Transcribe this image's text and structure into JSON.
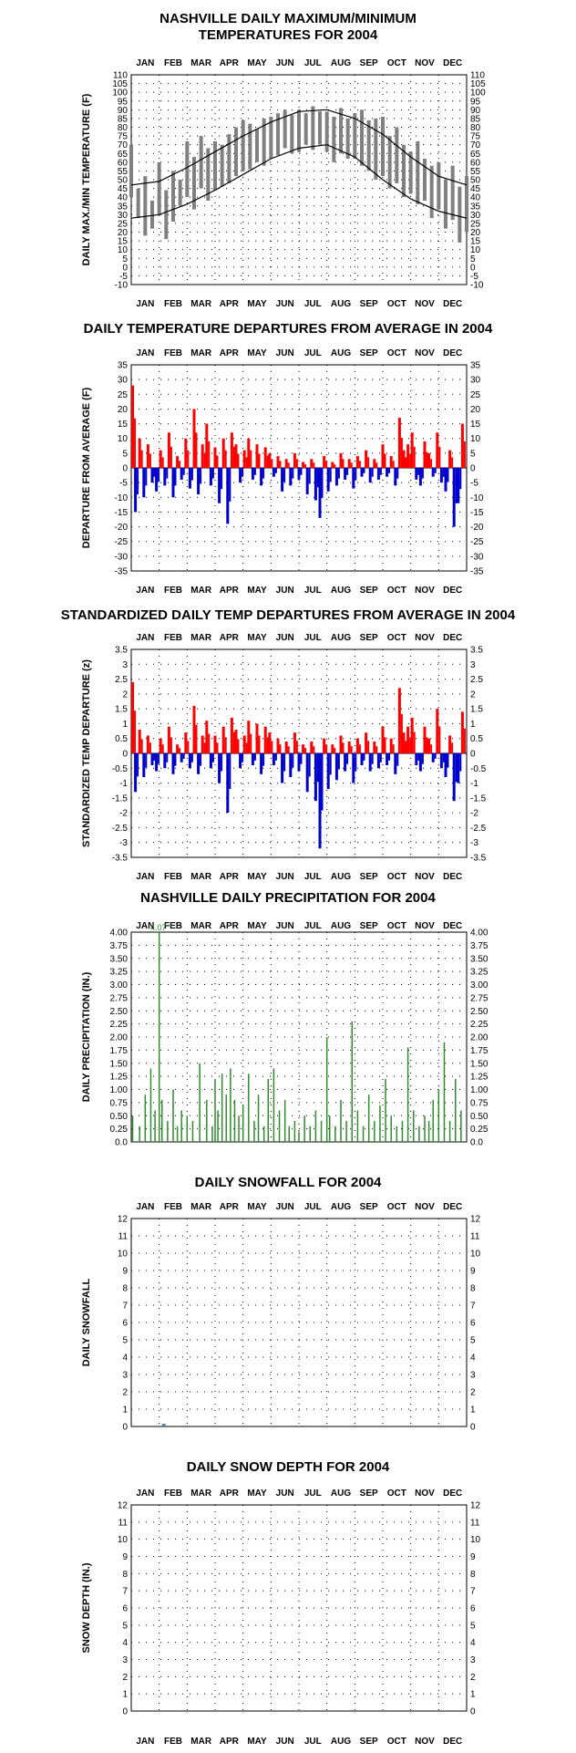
{
  "months": [
    "JAN",
    "FEB",
    "MAR",
    "APR",
    "MAY",
    "JUN",
    "JUL",
    "AUG",
    "SEP",
    "OCT",
    "NOV",
    "DEC"
  ],
  "colors": {
    "temp_daily": "#808080",
    "normal": "#000000",
    "above": "#ff0000",
    "below": "#0000cc",
    "precip": "#2e8b2e",
    "snow": "#4a7fd0",
    "grid": "#000000"
  },
  "chart_data": [
    {
      "id": "maxmin",
      "type": "line",
      "title": "NASHVILLE DAILY MAXIMUM/MINIMUM\nTEMPERATURES FOR 2004",
      "ylabel": "DAILY MAX./MIN TEMPERATURE  (F)",
      "ylim": [
        -10,
        110
      ],
      "yticks": [
        -10,
        -5,
        0,
        5,
        10,
        15,
        20,
        25,
        30,
        35,
        40,
        45,
        50,
        55,
        60,
        65,
        70,
        75,
        80,
        85,
        90,
        95,
        100,
        105,
        110
      ],
      "x_unit": "month",
      "series": [
        {
          "role": "normal_high",
          "x": [
            0,
            1,
            2,
            3,
            4,
            5,
            6,
            7,
            8,
            9,
            10,
            11,
            12
          ],
          "values": [
            47,
            49,
            57,
            66,
            75,
            83,
            89,
            90,
            85,
            76,
            63,
            52,
            47
          ]
        },
        {
          "role": "normal_low",
          "x": [
            0,
            1,
            2,
            3,
            4,
            5,
            6,
            7,
            8,
            9,
            10,
            11,
            12
          ],
          "values": [
            28,
            30,
            36,
            44,
            53,
            62,
            68,
            70,
            63,
            50,
            39,
            32,
            28
          ]
        },
        {
          "role": "daily_max",
          "x": [
            0.0,
            0.25,
            0.5,
            0.75,
            1.0,
            1.25,
            1.5,
            1.75,
            2.0,
            2.25,
            2.5,
            2.75,
            3.0,
            3.25,
            3.5,
            3.75,
            4.0,
            4.25,
            4.5,
            4.75,
            5.0,
            5.25,
            5.5,
            5.75,
            6.0,
            6.25,
            6.5,
            6.75,
            7.0,
            7.25,
            7.5,
            7.75,
            8.0,
            8.25,
            8.5,
            8.75,
            9.0,
            9.25,
            9.5,
            9.75,
            10.0,
            10.25,
            10.5,
            10.75,
            11.0,
            11.25,
            11.5,
            11.75,
            12.0
          ],
          "values": [
            70,
            45,
            52,
            38,
            60,
            44,
            55,
            50,
            72,
            63,
            75,
            68,
            72,
            70,
            76,
            80,
            84,
            82,
            79,
            85,
            86,
            88,
            90,
            87,
            90,
            88,
            92,
            89,
            89,
            86,
            91,
            85,
            88,
            90,
            84,
            85,
            86,
            75,
            80,
            70,
            66,
            72,
            62,
            58,
            60,
            50,
            58,
            46,
            52
          ]
        },
        {
          "role": "daily_min",
          "x": [
            0.0,
            0.25,
            0.5,
            0.75,
            1.0,
            1.25,
            1.5,
            1.75,
            2.0,
            2.25,
            2.5,
            2.75,
            3.0,
            3.25,
            3.5,
            3.75,
            4.0,
            4.25,
            4.5,
            4.75,
            5.0,
            5.25,
            5.5,
            5.75,
            6.0,
            6.25,
            6.5,
            6.75,
            7.0,
            7.25,
            7.5,
            7.75,
            8.0,
            8.25,
            8.5,
            8.75,
            9.0,
            9.25,
            9.5,
            9.75,
            10.0,
            10.25,
            10.5,
            10.75,
            11.0,
            11.25,
            11.5,
            11.75,
            12.0
          ],
          "values": [
            40,
            28,
            18,
            22,
            30,
            16,
            26,
            35,
            40,
            33,
            45,
            38,
            44,
            46,
            48,
            52,
            55,
            56,
            60,
            58,
            62,
            64,
            68,
            65,
            66,
            70,
            67,
            70,
            66,
            60,
            65,
            62,
            62,
            58,
            55,
            50,
            52,
            45,
            48,
            40,
            42,
            36,
            38,
            28,
            33,
            22,
            27,
            14,
            20
          ]
        }
      ]
    },
    {
      "id": "departures",
      "type": "bar",
      "title": "DAILY TEMPERATURE DEPARTURES FROM AVERAGE IN 2004",
      "ylabel": "DEPARTURE FROM AVERAGE  (F)",
      "ylim": [
        -35,
        35
      ],
      "yticks": [
        -35,
        -30,
        -25,
        -20,
        -15,
        -10,
        -5,
        0,
        5,
        10,
        15,
        20,
        25,
        30,
        35
      ],
      "x_unit": "month",
      "x": [
        0.05,
        0.15,
        0.3,
        0.45,
        0.6,
        0.75,
        0.9,
        1.05,
        1.2,
        1.35,
        1.5,
        1.65,
        1.8,
        1.95,
        2.1,
        2.25,
        2.4,
        2.55,
        2.7,
        2.85,
        3.0,
        3.15,
        3.3,
        3.45,
        3.6,
        3.75,
        3.9,
        4.05,
        4.2,
        4.35,
        4.5,
        4.65,
        4.8,
        4.95,
        5.1,
        5.25,
        5.4,
        5.55,
        5.7,
        5.85,
        6.0,
        6.15,
        6.3,
        6.45,
        6.6,
        6.75,
        6.9,
        7.05,
        7.2,
        7.35,
        7.5,
        7.65,
        7.8,
        7.95,
        8.1,
        8.25,
        8.4,
        8.55,
        8.7,
        8.85,
        9.0,
        9.15,
        9.3,
        9.45,
        9.6,
        9.75,
        9.9,
        10.05,
        10.2,
        10.35,
        10.5,
        10.65,
        10.8,
        10.95,
        11.1,
        11.25,
        11.4,
        11.55,
        11.7,
        11.85
      ],
      "values": [
        28,
        -15,
        10,
        -10,
        8,
        -5,
        -8,
        6,
        -6,
        12,
        -10,
        4,
        -4,
        10,
        -7,
        20,
        -9,
        8,
        15,
        -6,
        7,
        -12,
        10,
        -19,
        12,
        8,
        -5,
        6,
        10,
        -4,
        8,
        -6,
        7,
        5,
        -3,
        4,
        -8,
        3,
        -6,
        5,
        -4,
        2,
        -9,
        3,
        -11,
        -17,
        4,
        -8,
        2,
        -6,
        5,
        -4,
        3,
        -7,
        4,
        -3,
        6,
        -5,
        3,
        -4,
        8,
        -3,
        4,
        -6,
        17,
        6,
        8,
        12,
        -4,
        -6,
        9,
        5,
        -3,
        12,
        -5,
        -8,
        6,
        -20,
        -12,
        15
      ]
    },
    {
      "id": "standardized",
      "type": "bar",
      "title": "STANDARDIZED DAILY TEMP DEPARTURES FROM AVERAGE IN 2004",
      "ylabel": "STANDARDIZED TEMP DEPARTURE  (z)",
      "ylim": [
        -3.5,
        3.5
      ],
      "yticks": [
        -3.5,
        -3.0,
        -2.5,
        -2.0,
        -1.5,
        -1.0,
        -0.5,
        0.0,
        0.5,
        1.0,
        1.5,
        2.0,
        2.5,
        3.0,
        3.5
      ],
      "x_unit": "month",
      "x": [
        0.05,
        0.15,
        0.3,
        0.45,
        0.6,
        0.75,
        0.9,
        1.05,
        1.2,
        1.35,
        1.5,
        1.65,
        1.8,
        1.95,
        2.1,
        2.25,
        2.4,
        2.55,
        2.7,
        2.85,
        3.0,
        3.15,
        3.3,
        3.45,
        3.6,
        3.75,
        3.9,
        4.05,
        4.2,
        4.35,
        4.5,
        4.65,
        4.8,
        4.95,
        5.1,
        5.25,
        5.4,
        5.55,
        5.7,
        5.85,
        6.0,
        6.15,
        6.3,
        6.45,
        6.6,
        6.75,
        6.9,
        7.05,
        7.2,
        7.35,
        7.5,
        7.65,
        7.8,
        7.95,
        8.1,
        8.25,
        8.4,
        8.55,
        8.7,
        8.85,
        9.0,
        9.15,
        9.3,
        9.45,
        9.6,
        9.75,
        9.9,
        10.05,
        10.2,
        10.35,
        10.5,
        10.65,
        10.8,
        10.95,
        11.1,
        11.25,
        11.4,
        11.55,
        11.7,
        11.85
      ],
      "values": [
        2.4,
        -1.3,
        0.8,
        -0.8,
        0.6,
        -0.4,
        -0.6,
        0.5,
        -0.5,
        0.9,
        -0.7,
        0.3,
        -0.3,
        0.7,
        -0.5,
        1.6,
        -0.7,
        0.6,
        1.1,
        -0.5,
        0.6,
        -1.0,
        0.9,
        -2.0,
        1.2,
        0.8,
        -0.5,
        0.6,
        1.1,
        -0.4,
        1.0,
        -0.7,
        0.9,
        0.7,
        -0.4,
        0.5,
        -1.0,
        0.4,
        -0.8,
        0.7,
        -0.6,
        0.3,
        -1.3,
        0.4,
        -1.6,
        -3.2,
        0.5,
        -1.2,
        0.3,
        -0.9,
        0.6,
        -0.6,
        0.4,
        -1.0,
        0.5,
        -0.4,
        0.7,
        -0.6,
        0.4,
        -0.5,
        0.9,
        -0.4,
        0.5,
        -0.7,
        2.2,
        0.7,
        0.9,
        1.2,
        -0.4,
        -0.6,
        0.9,
        0.5,
        -0.3,
        1.5,
        -0.5,
        -0.8,
        0.6,
        -1.6,
        -1.0,
        1.4
      ]
    },
    {
      "id": "precip",
      "type": "bar",
      "title": "NASHVILLE DAILY PRECIPITATION FOR 2004",
      "ylabel": "DAILY PRECIPITATION (IN.)",
      "ylim": [
        0,
        4.0
      ],
      "yticks": [
        0.0,
        0.25,
        0.5,
        0.75,
        1.0,
        1.25,
        1.5,
        1.75,
        2.0,
        2.25,
        2.5,
        2.75,
        3.0,
        3.25,
        3.5,
        3.75,
        4.0
      ],
      "yticks_labels": [
        "0.0",
        "0.25",
        "0.50",
        "0.75",
        "1.00",
        "1.25",
        "1.50",
        "1.75",
        "2.00",
        "2.25",
        "2.50",
        "2.75",
        "3.00",
        "3.25",
        "3.50",
        "3.75",
        "4.00"
      ],
      "annotation": "4.07 \"",
      "x_unit": "month",
      "x": [
        0.05,
        0.3,
        0.5,
        0.7,
        0.85,
        1.0,
        1.1,
        1.3,
        1.5,
        1.65,
        1.8,
        2.0,
        2.2,
        2.45,
        2.7,
        2.9,
        3.0,
        3.1,
        3.25,
        3.4,
        3.55,
        3.7,
        3.85,
        4.0,
        4.2,
        4.4,
        4.55,
        4.75,
        4.9,
        5.1,
        5.3,
        5.5,
        5.65,
        5.85,
        6.0,
        6.2,
        6.4,
        6.6,
        6.8,
        7.0,
        7.1,
        7.3,
        7.5,
        7.7,
        7.9,
        8.1,
        8.3,
        8.5,
        8.7,
        8.9,
        9.1,
        9.3,
        9.5,
        9.7,
        9.9,
        10.1,
        10.3,
        10.5,
        10.65,
        10.8,
        11.0,
        11.2,
        11.4,
        11.6,
        11.8
      ],
      "values": [
        0.5,
        0.3,
        0.9,
        1.4,
        0.6,
        4.07,
        0.8,
        0.4,
        1.0,
        0.3,
        0.6,
        0.5,
        0.4,
        1.5,
        0.8,
        0.3,
        1.2,
        0.6,
        1.3,
        0.9,
        1.4,
        0.8,
        0.5,
        0.7,
        1.3,
        0.4,
        0.9,
        0.3,
        1.2,
        1.4,
        0.6,
        0.8,
        0.3,
        0.4,
        0.2,
        0.5,
        0.3,
        0.6,
        0.4,
        2.0,
        0.5,
        0.3,
        0.8,
        0.4,
        2.3,
        0.6,
        0.3,
        0.9,
        0.4,
        0.7,
        1.2,
        0.5,
        0.3,
        0.4,
        1.8,
        0.6,
        0.3,
        0.5,
        0.4,
        0.8,
        1.0,
        1.9,
        0.4,
        1.2,
        0.6
      ]
    },
    {
      "id": "snowfall",
      "type": "bar",
      "title": "DAILY SNOWFALL FOR 2004",
      "ylabel": "DAILY SNOWFALL",
      "ylim": [
        0,
        12
      ],
      "yticks": [
        0,
        1,
        2,
        3,
        4,
        5,
        6,
        7,
        8,
        9,
        10,
        11,
        12
      ],
      "x_unit": "month",
      "x": [
        1.1
      ],
      "values": [
        0.1
      ]
    },
    {
      "id": "snowdepth",
      "type": "bar",
      "title": "DAILY SNOW DEPTH FOR 2004",
      "ylabel": "SNOW DEPTH (IN.)",
      "ylim": [
        0,
        12
      ],
      "yticks": [
        0,
        1,
        2,
        3,
        4,
        5,
        6,
        7,
        8,
        9,
        10,
        11,
        12
      ],
      "x_unit": "month",
      "x": [],
      "values": []
    }
  ]
}
